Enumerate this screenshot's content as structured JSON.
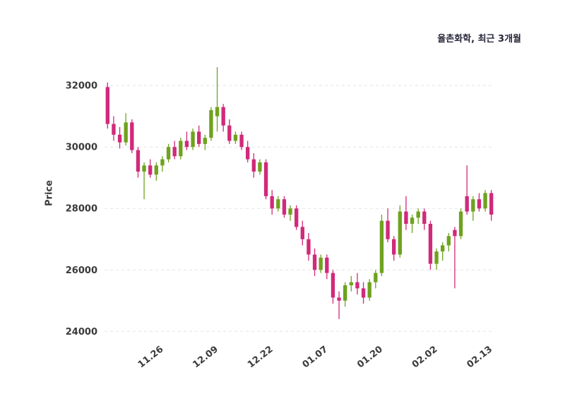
{
  "chart_data": {
    "type": "candlestick",
    "title": "율촌화학, 최근 3개월",
    "ylabel": "Price",
    "ylim": [
      23800,
      32900
    ],
    "yticks": [
      24000,
      26000,
      28000,
      30000,
      32000
    ],
    "xtick_labels": [
      "11.26",
      "12.09",
      "12.22",
      "01.07",
      "01.20",
      "02.02",
      "02.13"
    ],
    "xtick_indices": [
      9,
      18,
      27,
      36,
      45,
      54,
      63
    ],
    "grid": "horizontal-dashed",
    "legend": "none",
    "colors": {
      "up": "#6fa21f",
      "down": "#d02a7a",
      "grid": "#e3e3e3",
      "tick_text": "#3a3a3a",
      "title_text": "#26263a",
      "background": "#ffffff"
    },
    "candles_format": [
      "open",
      "high",
      "low",
      "close"
    ],
    "candles": [
      [
        31950,
        32100,
        30600,
        30750
      ],
      [
        30750,
        31000,
        30200,
        30400
      ],
      [
        30400,
        30650,
        29950,
        30150
      ],
      [
        30150,
        31100,
        30050,
        30800
      ],
      [
        30800,
        30900,
        29800,
        29900
      ],
      [
        29900,
        30000,
        29000,
        29200
      ],
      [
        29200,
        29500,
        28300,
        29400
      ],
      [
        29400,
        29600,
        29000,
        29100
      ],
      [
        29100,
        29500,
        28900,
        29400
      ],
      [
        29400,
        29700,
        29200,
        29600
      ],
      [
        29600,
        30100,
        29500,
        30000
      ],
      [
        30000,
        30200,
        29600,
        29700
      ],
      [
        29700,
        30300,
        29600,
        30200
      ],
      [
        30200,
        30500,
        29900,
        30000
      ],
      [
        30000,
        30600,
        29900,
        30500
      ],
      [
        30500,
        30700,
        30000,
        30100
      ],
      [
        30100,
        30400,
        29900,
        30300
      ],
      [
        30300,
        31300,
        30200,
        31200
      ],
      [
        31000,
        32600,
        30500,
        31300
      ],
      [
        31300,
        31400,
        30500,
        30700
      ],
      [
        30700,
        30900,
        30100,
        30200
      ],
      [
        30200,
        30500,
        30100,
        30400
      ],
      [
        30400,
        30500,
        29900,
        30000
      ],
      [
        30000,
        30200,
        29500,
        29600
      ],
      [
        29600,
        29800,
        29000,
        29200
      ],
      [
        29200,
        29600,
        29100,
        29500
      ],
      [
        29500,
        29600,
        28300,
        28400
      ],
      [
        28400,
        28600,
        27800,
        28000
      ],
      [
        28000,
        28400,
        27900,
        28300
      ],
      [
        28300,
        28400,
        27700,
        27800
      ],
      [
        27800,
        28100,
        27600,
        28000
      ],
      [
        28000,
        28100,
        27300,
        27400
      ],
      [
        27400,
        27600,
        26800,
        27000
      ],
      [
        27000,
        27200,
        26300,
        26500
      ],
      [
        26500,
        26700,
        25800,
        26000
      ],
      [
        26000,
        26500,
        25900,
        26400
      ],
      [
        26400,
        26500,
        25700,
        25900
      ],
      [
        25900,
        26000,
        24900,
        25100
      ],
      [
        25100,
        25300,
        24400,
        25000
      ],
      [
        25000,
        25600,
        24800,
        25500
      ],
      [
        25500,
        25800,
        25300,
        25600
      ],
      [
        25600,
        25900,
        25200,
        25400
      ],
      [
        25400,
        25600,
        24900,
        25100
      ],
      [
        25100,
        25700,
        25000,
        25600
      ],
      [
        25600,
        26000,
        25400,
        25900
      ],
      [
        25900,
        27800,
        25800,
        27600
      ],
      [
        27600,
        28000,
        26900,
        27000
      ],
      [
        27000,
        27100,
        26300,
        26500
      ],
      [
        26500,
        28100,
        26400,
        27900
      ],
      [
        27900,
        28400,
        27300,
        27500
      ],
      [
        27500,
        27800,
        27200,
        27700
      ],
      [
        27700,
        28000,
        27500,
        27900
      ],
      [
        27900,
        28000,
        27300,
        27500
      ],
      [
        27500,
        27600,
        26000,
        26200
      ],
      [
        26200,
        26700,
        26000,
        26600
      ],
      [
        26600,
        26900,
        26300,
        26800
      ],
      [
        26800,
        27200,
        26600,
        27100
      ],
      [
        27300,
        27400,
        25400,
        27100
      ],
      [
        27100,
        28000,
        27000,
        27900
      ],
      [
        28400,
        29400,
        27800,
        27900
      ],
      [
        27900,
        28400,
        27600,
        28300
      ],
      [
        28300,
        28500,
        27900,
        28000
      ],
      [
        28000,
        28600,
        27900,
        28500
      ],
      [
        28500,
        28600,
        27600,
        27800
      ]
    ]
  }
}
